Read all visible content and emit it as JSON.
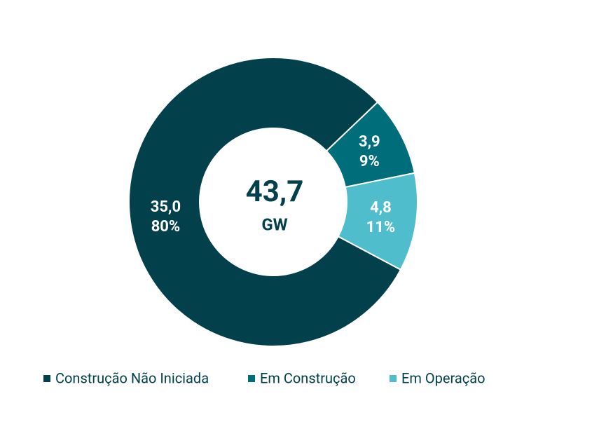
{
  "chart_data": {
    "type": "donut",
    "categories": [
      "Construção Não Iniciada",
      "Em Construção",
      "Em Operação"
    ],
    "values": [
      35.0,
      3.9,
      4.8
    ],
    "value_labels": [
      "35,0",
      "3,9",
      "4,8"
    ],
    "percent_labels": [
      "80%",
      "9%",
      "11%"
    ],
    "colors": [
      "#02404b",
      "#006e7a",
      "#4fbdcc"
    ],
    "center_label": "43,7",
    "center_unit": "GW"
  }
}
